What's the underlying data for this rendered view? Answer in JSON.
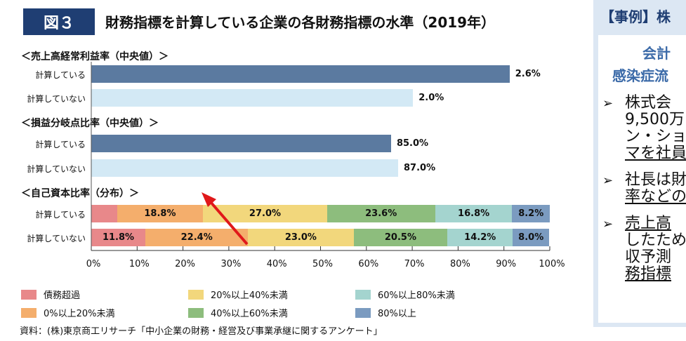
{
  "header": {
    "figure_label": "図３",
    "title": "財務指標を計算している企業の各財務指標の水準（2019年）"
  },
  "chart_data": [
    {
      "type": "bar",
      "orientation": "horizontal",
      "title": "＜売上高経常利益率（中央値）＞",
      "categories": [
        "計算している",
        "計算していない"
      ],
      "values": [
        2.6,
        2.0
      ],
      "labels": [
        "2.6%",
        "2.0%"
      ],
      "unit": "%",
      "colors": [
        "#5b7aa0",
        "#d3e9f5"
      ]
    },
    {
      "type": "bar",
      "orientation": "horizontal",
      "title": "＜損益分岐点比率（中央値）＞",
      "categories": [
        "計算している",
        "計算していない"
      ],
      "values": [
        85.0,
        87.0
      ],
      "labels": [
        "85.0%",
        "87.0%"
      ],
      "unit": "%",
      "colors": [
        "#5b7aa0",
        "#d3e9f5"
      ]
    },
    {
      "type": "bar",
      "stacked": true,
      "orientation": "horizontal",
      "title": "＜自己資本比率（分布）＞",
      "categories": [
        "計算している",
        "計算していない"
      ],
      "xlim": [
        0,
        100
      ],
      "x_ticks": [
        "0%",
        "10%",
        "20%",
        "30%",
        "40%",
        "50%",
        "60%",
        "70%",
        "80%",
        "90%",
        "100%"
      ],
      "legend_placement": "bottom",
      "series": [
        {
          "name": "債務超過",
          "color": "#e8888a",
          "values": [
            5.6,
            11.8
          ],
          "labels": [
            "",
            "11.8%"
          ]
        },
        {
          "name": "0%以上20%未満",
          "color": "#f4ae6c",
          "values": [
            18.8,
            22.4
          ],
          "labels": [
            "18.8%",
            "22.4%"
          ]
        },
        {
          "name": "20%以上40%未満",
          "color": "#f2d77c",
          "values": [
            27.0,
            23.0
          ],
          "labels": [
            "27.0%",
            "23.0%"
          ]
        },
        {
          "name": "40%以上60%未満",
          "color": "#8dbd7d",
          "values": [
            23.6,
            20.5
          ],
          "labels": [
            "23.6%",
            "20.5%"
          ]
        },
        {
          "name": "60%以上80%未満",
          "color": "#a4d4cf",
          "values": [
            16.8,
            14.2
          ],
          "labels": [
            "16.8%",
            "14.2%"
          ]
        },
        {
          "name": "80%以上",
          "color": "#7b9bc0",
          "values": [
            8.2,
            8.0
          ],
          "labels": [
            "8.2%",
            "8.0%"
          ]
        }
      ],
      "annotation": "red-arrow"
    }
  ],
  "source": "資料：(株)東京商工リサーチ「中小企業の財務・経営及び事業承継に関するアンケート」",
  "side_panel": {
    "heading": "【事例】株",
    "sub1": "会計",
    "sub2": "感染症流",
    "bullets": [
      [
        "株式会",
        "9,500万",
        "ン・ショッ",
        "マを社員"
      ],
      [
        "社長は財",
        "率などの"
      ],
      [
        "売上高",
        "したため",
        "収予測",
        "務指標"
      ]
    ]
  }
}
